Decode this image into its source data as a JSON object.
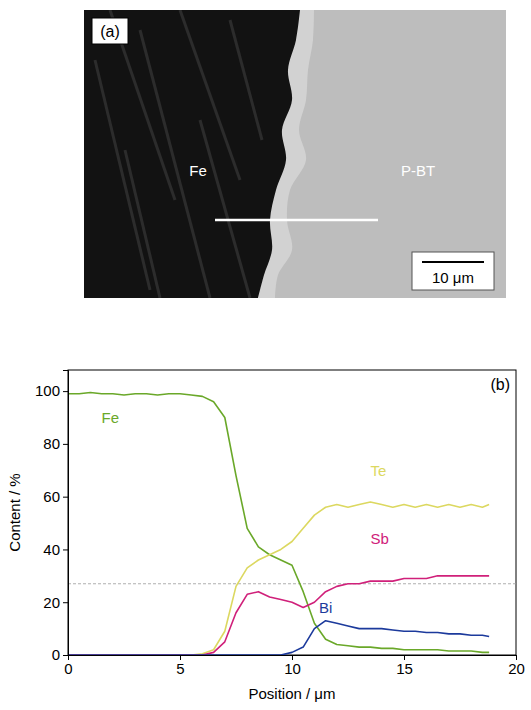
{
  "panel_a": {
    "label": "(a)",
    "regions": [
      "Fe",
      "P-BT"
    ],
    "scale_bar": "10 μm"
  },
  "chart_data": {
    "type": "line",
    "panel_label": "(b)",
    "x_label": "Position / μm",
    "y_label": "Content / %",
    "x": [
      0,
      0.5,
      1,
      1.5,
      2,
      2.5,
      3,
      3.5,
      4,
      4.5,
      5,
      5.5,
      6,
      6.5,
      7,
      7.5,
      8,
      8.5,
      9,
      9.5,
      10,
      10.5,
      11,
      11.5,
      12,
      12.5,
      13,
      13.5,
      14,
      14.5,
      15,
      15.5,
      16,
      16.5,
      17,
      17.5,
      18,
      18.5,
      18.8
    ],
    "series": [
      {
        "name": "Fe",
        "color": "#6aa829",
        "values": [
          99,
          99,
          99.5,
          99,
          99,
          98.5,
          99,
          99,
          98.5,
          99,
          99,
          98.5,
          98,
          96,
          90,
          68,
          48,
          41,
          38,
          36,
          34,
          24,
          12,
          6,
          4,
          3.5,
          3,
          3,
          2.5,
          2.5,
          2,
          2,
          2,
          2,
          1.5,
          1.5,
          1.5,
          1,
          1
        ]
      },
      {
        "name": "Te",
        "color": "#dcd860",
        "values": [
          0,
          0,
          0,
          0,
          0,
          0,
          0,
          0,
          0,
          0,
          0,
          0,
          0.5,
          2,
          9,
          26,
          33,
          36,
          38,
          40,
          43,
          48,
          53,
          56,
          57,
          56,
          57,
          58,
          57,
          56,
          57,
          56,
          57,
          56,
          57,
          56,
          57,
          56,
          57
        ]
      },
      {
        "name": "Sb",
        "color": "#d0207a",
        "values": [
          0,
          0,
          0,
          0,
          0,
          0,
          0,
          0,
          0,
          0,
          0,
          0,
          0,
          1,
          5,
          16,
          23,
          24,
          22,
          21,
          20,
          18,
          20,
          24,
          26,
          27,
          27,
          28,
          28,
          28,
          29,
          29,
          29,
          30,
          30,
          30,
          30,
          30,
          30
        ]
      },
      {
        "name": "Bi",
        "color": "#1c3a9c",
        "values": [
          0,
          0,
          0,
          0,
          0,
          0,
          0,
          0,
          0,
          0,
          0,
          0,
          0,
          0,
          0,
          0,
          0,
          0,
          0,
          0,
          1,
          3,
          10,
          13,
          12,
          11,
          10,
          10,
          10,
          9.5,
          9,
          9,
          8.5,
          8.5,
          8,
          8,
          7.5,
          7.5,
          7
        ]
      }
    ],
    "reference_line": 27,
    "xlim": [
      0,
      20
    ],
    "xticks": [
      0,
      5,
      10,
      15,
      20
    ],
    "ylim": [
      0,
      108
    ],
    "yticks": [
      0,
      20,
      40,
      60,
      80,
      100
    ],
    "grid": false
  }
}
